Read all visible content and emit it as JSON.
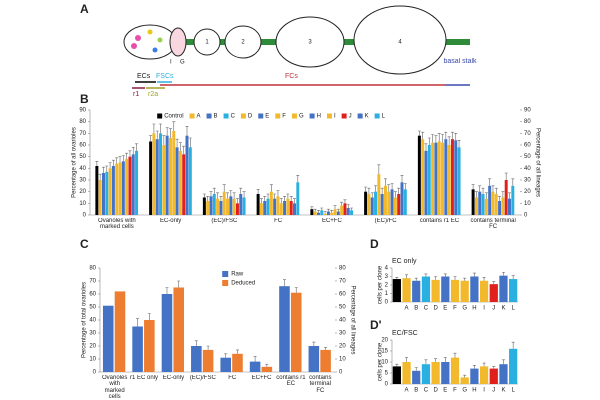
{
  "panel_a": {
    "letter": "A",
    "chambers": [
      "1",
      "2",
      "3",
      "4"
    ],
    "germarium_marks": [
      "I",
      "G"
    ],
    "ecs": "ECs",
    "fscs": "FSCs",
    "fcs": "FCs",
    "basal_stalk": "basal stalk",
    "r1": "r1",
    "r2a": "r2a"
  },
  "chart_data": [
    {
      "type": "bar",
      "panel": "B",
      "ylabel": "Percentage of all ovarioles",
      "y2label": "Percentage of all lineages",
      "ylim": [
        0,
        90
      ],
      "yticks": [
        0,
        10,
        20,
        30,
        40,
        50,
        60,
        70,
        80,
        90
      ],
      "y2lim": [
        0,
        90
      ],
      "y2ticks": [
        0,
        10,
        20,
        30,
        40,
        50,
        60,
        70,
        80,
        90
      ],
      "categories": [
        "Ovarioles with marked cells",
        "EC-only",
        "(EC)/FSC",
        "FC",
        "EC+FC",
        "(EC)/FC",
        "contains r1 EC",
        "contains terminal FC"
      ],
      "series": [
        {
          "name": "Control",
          "color": "#000000",
          "values": [
            42,
            63,
            15,
            18,
            5,
            20,
            68,
            22
          ],
          "errors": [
            4,
            5,
            3,
            4,
            2,
            4,
            4,
            4
          ]
        },
        {
          "name": "A",
          "color": "#f2b92c",
          "values": [
            30,
            70,
            12,
            10,
            3,
            18,
            65,
            15
          ],
          "errors": [
            5,
            8,
            4,
            4,
            2,
            5,
            6,
            5
          ]
        },
        {
          "name": "B",
          "color": "#4472c4",
          "values": [
            36,
            65,
            16,
            12,
            2,
            15,
            55,
            20
          ],
          "errors": [
            5,
            7,
            4,
            4,
            2,
            4,
            6,
            5
          ]
        },
        {
          "name": "C",
          "color": "#2ab0e0",
          "values": [
            37,
            70,
            18,
            14,
            4,
            20,
            60,
            18
          ],
          "errors": [
            5,
            8,
            5,
            4,
            2,
            5,
            6,
            5
          ]
        },
        {
          "name": "D",
          "color": "#f2b92c",
          "values": [
            40,
            60,
            14,
            20,
            1,
            35,
            62,
            14
          ],
          "errors": [
            5,
            8,
            5,
            6,
            2,
            8,
            7,
            5
          ]
        },
        {
          "name": "E",
          "color": "#4472c4",
          "values": [
            42,
            68,
            12,
            14,
            3,
            18,
            62,
            25
          ],
          "errors": [
            5,
            7,
            4,
            4,
            2,
            5,
            6,
            6
          ]
        },
        {
          "name": "F",
          "color": "#f2b92c",
          "values": [
            44,
            66,
            20,
            16,
            2,
            25,
            63,
            20
          ],
          "errors": [
            5,
            8,
            6,
            5,
            2,
            6,
            7,
            5
          ]
        },
        {
          "name": "G",
          "color": "#f2b92c",
          "values": [
            45,
            72,
            14,
            10,
            5,
            20,
            62,
            18
          ],
          "errors": [
            5,
            8,
            5,
            4,
            3,
            6,
            7,
            5
          ]
        },
        {
          "name": "H",
          "color": "#4472c4",
          "values": [
            46,
            58,
            16,
            12,
            3,
            22,
            65,
            12
          ],
          "errors": [
            5,
            7,
            5,
            4,
            2,
            5,
            6,
            4
          ]
        },
        {
          "name": "I",
          "color": "#f2b92c",
          "values": [
            48,
            55,
            14,
            14,
            8,
            15,
            60,
            15
          ],
          "errors": [
            5,
            7,
            5,
            4,
            3,
            5,
            7,
            5
          ]
        },
        {
          "name": "J",
          "color": "#e0201c",
          "values": [
            50,
            52,
            10,
            12,
            10,
            18,
            65,
            30
          ],
          "errors": [
            5,
            7,
            4,
            4,
            3,
            5,
            6,
            6
          ]
        },
        {
          "name": "K",
          "color": "#4472c4",
          "values": [
            52,
            68,
            18,
            10,
            6,
            28,
            64,
            14
          ],
          "errors": [
            6,
            8,
            5,
            4,
            3,
            6,
            6,
            5
          ]
        },
        {
          "name": "L",
          "color": "#2ab0e0",
          "values": [
            55,
            58,
            15,
            28,
            4,
            22,
            58,
            25
          ],
          "errors": [
            6,
            8,
            5,
            6,
            2,
            5,
            6,
            6
          ]
        }
      ]
    },
    {
      "type": "bar",
      "panel": "C",
      "ylabel": "Percentage of total ovarioles",
      "y2label": "Percentage of all lineages",
      "ylim": [
        0,
        80
      ],
      "yticks": [
        0,
        10,
        20,
        30,
        40,
        50,
        60,
        70,
        80
      ],
      "y2lim": [
        0,
        80
      ],
      "y2ticks": [
        0,
        10,
        20,
        30,
        40,
        50,
        60,
        70,
        80
      ],
      "legend": "top-right",
      "categories": [
        "Ovarioles with marked cells",
        "r1 EC only",
        "EC-only",
        "(EC)/FSC",
        "FC",
        "EC+FC",
        "contains r1 EC",
        "contains terminal FC"
      ],
      "series": [
        {
          "name": "Raw",
          "color": "#4472c4",
          "values": [
            51,
            35,
            60,
            20,
            11,
            8,
            66,
            20
          ],
          "errors": [
            null,
            6,
            5,
            4,
            3,
            4,
            5,
            3
          ]
        },
        {
          "name": "Deduced",
          "color": "#ed7d31",
          "values": [
            62,
            40,
            65,
            17,
            14,
            4,
            61,
            17
          ],
          "errors": [
            null,
            5,
            5,
            3,
            3,
            2,
            4,
            2
          ]
        }
      ]
    },
    {
      "type": "bar",
      "panel": "D",
      "title": "EC only",
      "ylabel": "cells per clone",
      "ylim": [
        0,
        4
      ],
      "yticks": [
        0,
        1,
        2,
        3,
        4
      ],
      "categories": [
        null,
        "A",
        "B",
        "C",
        "D",
        "E",
        "F",
        "G",
        "H",
        "I",
        "J",
        "K",
        "L"
      ],
      "colors": [
        "#000000",
        "#f2b92c",
        "#4472c4",
        "#2ab0e0",
        "#f2b92c",
        "#4472c4",
        "#f2b92c",
        "#f2b92c",
        "#4472c4",
        "#f2b92c",
        "#e0201c",
        "#4472c4",
        "#2ab0e0"
      ],
      "values": [
        2.7,
        2.8,
        2.5,
        3.0,
        2.6,
        3.0,
        2.6,
        2.5,
        3.0,
        2.5,
        2.1,
        3.1,
        2.7
      ],
      "errors": [
        0.2,
        0.4,
        0.3,
        0.3,
        0.4,
        0.3,
        0.4,
        0.3,
        0.4,
        0.4,
        0.3,
        0.4,
        0.4
      ]
    },
    {
      "type": "bar",
      "panel": "D'",
      "title": "EC/FSC",
      "ylabel": "cells per clone",
      "ylim": [
        0,
        20
      ],
      "yticks": [
        0,
        5,
        10,
        15,
        20
      ],
      "categories": [
        null,
        "A",
        "B",
        "C",
        "D",
        "E",
        "F",
        "G",
        "H",
        "I",
        "J",
        "K",
        "L"
      ],
      "colors": [
        "#000000",
        "#f2b92c",
        "#4472c4",
        "#2ab0e0",
        "#f2b92c",
        "#4472c4",
        "#f2b92c",
        "#f2b92c",
        "#4472c4",
        "#f2b92c",
        "#e0201c",
        "#4472c4",
        "#2ab0e0"
      ],
      "values": [
        8,
        10,
        6,
        9,
        10,
        10,
        12,
        3,
        7,
        8,
        7,
        9,
        16
      ],
      "errors": [
        1,
        2,
        1.5,
        2,
        1.5,
        2,
        2,
        1,
        1.5,
        1.5,
        1,
        2,
        3
      ]
    }
  ]
}
